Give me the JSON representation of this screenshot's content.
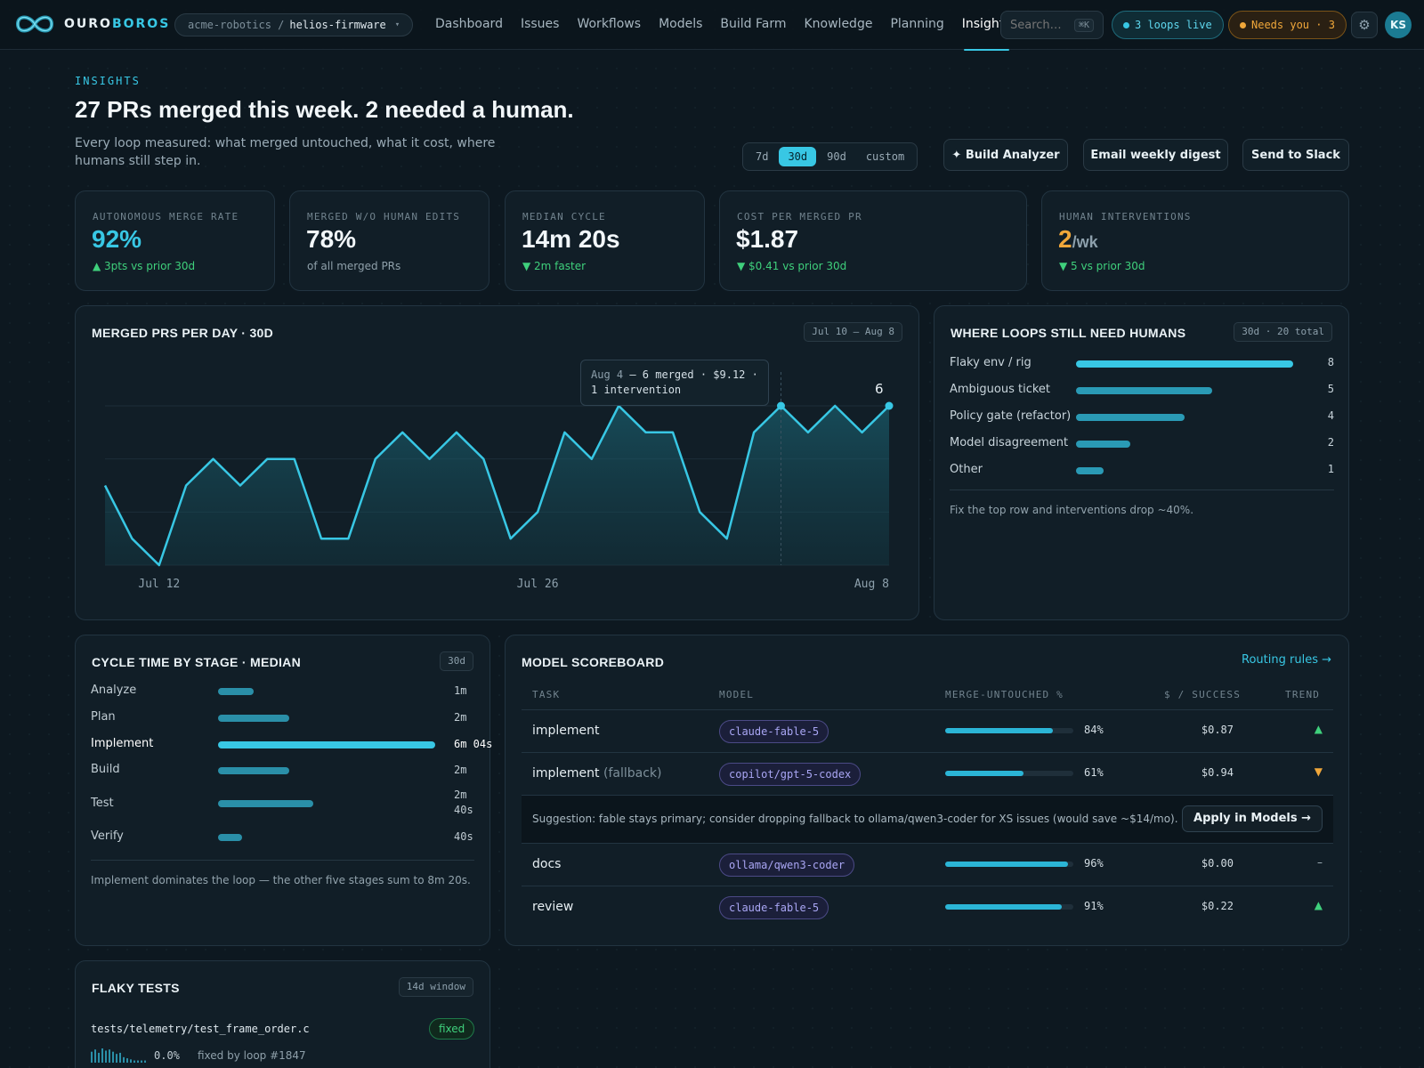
{
  "brand": {
    "name_a": "OURO",
    "name_b": "BOROS"
  },
  "repo": {
    "org": "acme-robotics /",
    "name": "helios-firmware"
  },
  "nav": [
    {
      "label": "Dashboard",
      "active": false
    },
    {
      "label": "Issues",
      "active": false
    },
    {
      "label": "Workflows",
      "active": false
    },
    {
      "label": "Models",
      "active": false
    },
    {
      "label": "Build Farm",
      "active": false
    },
    {
      "label": "Knowledge",
      "active": false
    },
    {
      "label": "Planning",
      "active": false
    },
    {
      "label": "Insights",
      "active": true
    }
  ],
  "search": {
    "placeholder": "Search…",
    "shortcut": "⌘K"
  },
  "status": {
    "live": "3 loops live",
    "needs": "Needs you · 3"
  },
  "user": {
    "initials": "KS"
  },
  "header": {
    "eyebrow": "INSIGHTS",
    "title": "27 PRs merged this week. 2 needed a human.",
    "subtitle": "Every loop measured: what merged untouched, what it cost, where humans still step in.",
    "ranges": [
      "7d",
      "30d",
      "90d",
      "custom"
    ],
    "selected_range": "30d",
    "actions": {
      "analyzer": "✦ Build Analyzer",
      "digest": "Email weekly digest",
      "slack": "Send to Slack"
    }
  },
  "kpis": [
    {
      "label": "AUTONOMOUS MERGE RATE",
      "value": "92%",
      "unit": "",
      "sub": "▲ 3pts vs prior 30d",
      "tone": "good",
      "color": "#38c7e4"
    },
    {
      "label": "MERGED W/O HUMAN EDITS",
      "value": "78%",
      "unit": "",
      "sub": "of all merged PRs",
      "tone": "neutral",
      "color": "#f2f7fa"
    },
    {
      "label": "MEDIAN CYCLE",
      "value": "14m 20s",
      "unit": "",
      "sub": "▼ 2m faster",
      "tone": "good",
      "color": "#f2f7fa"
    },
    {
      "label": "COST PER MERGED PR",
      "value": "$1.87",
      "unit": "",
      "sub": "▼ $0.41 vs prior 30d",
      "tone": "good",
      "color": "#f2f7fa"
    },
    {
      "label": "HUMAN INTERVENTIONS",
      "value": "2",
      "unit": "/wk",
      "sub": "▼ 5 vs prior 30d",
      "tone": "good",
      "color": "#f0a73a"
    }
  ],
  "merged_chart": {
    "title": "MERGED PRS PER DAY · 30D",
    "range_tag": "Jul 10 – Aug 8",
    "x_ticks": [
      "Jul 12",
      "Jul 26",
      "Aug 8"
    ],
    "tooltip": {
      "date": "Aug 4",
      "body_1": " — 6 merged · $9.12 ·",
      "body_2": "1 intervention"
    },
    "last_value_label": "6",
    "chart_data": {
      "type": "area",
      "x": [
        "Jul 10",
        "Jul 11",
        "Jul 12",
        "Jul 13",
        "Jul 14",
        "Jul 15",
        "Jul 16",
        "Jul 17",
        "Jul 18",
        "Jul 19",
        "Jul 20",
        "Jul 21",
        "Jul 22",
        "Jul 23",
        "Jul 24",
        "Jul 25",
        "Jul 26",
        "Jul 27",
        "Jul 28",
        "Jul 29",
        "Jul 30",
        "Jul 31",
        "Aug 1",
        "Aug 2",
        "Aug 3",
        "Aug 4",
        "Aug 5",
        "Aug 6",
        "Aug 7",
        "Aug 8"
      ],
      "values": [
        3,
        1,
        0,
        3,
        4,
        3,
        4,
        4,
        1,
        1,
        4,
        5,
        4,
        5,
        4,
        1,
        2,
        5,
        4,
        6,
        5,
        5,
        2,
        1,
        5,
        6,
        5,
        6,
        5,
        6
      ],
      "ylim": [
        0,
        6
      ],
      "grid": true,
      "highlight_x": "Aug 4",
      "color": "#38c7e4"
    }
  },
  "humans": {
    "title": "WHERE LOOPS STILL NEED HUMANS",
    "tag": "30d · 20 total",
    "note": "Fix the top row and interventions drop ~40%.",
    "chart_data": {
      "type": "bar",
      "categories": [
        "Flaky env / rig",
        "Ambiguous ticket",
        "Policy gate (refactor)",
        "Model disagreement",
        "Other"
      ],
      "values": [
        8,
        5,
        4,
        2,
        1
      ],
      "colors": [
        "#38c7e4",
        "#2a9ab5",
        "#2a9ab5",
        "#2a9ab5",
        "#2a9ab5"
      ]
    }
  },
  "cycle": {
    "title": "CYCLE TIME BY STAGE · MEDIAN",
    "tag": "30d",
    "note": "Implement dominates the loop — the other five stages sum to 8m 20s.",
    "stages": [
      {
        "label": "Analyze",
        "value_label": "1m",
        "seconds": 60,
        "highlight": false
      },
      {
        "label": "Plan",
        "value_label": "2m",
        "seconds": 120,
        "highlight": false
      },
      {
        "label": "Implement",
        "value_label": "6m 04s",
        "seconds": 364,
        "highlight": true
      },
      {
        "label": "Build",
        "value_label": "2m",
        "seconds": 120,
        "highlight": false
      },
      {
        "label": "Test",
        "value_label": "2m 40s",
        "seconds": 160,
        "highlight": false
      },
      {
        "label": "Verify",
        "value_label": "40s",
        "seconds": 40,
        "highlight": false
      }
    ]
  },
  "scoreboard": {
    "title": "MODEL SCOREBOARD",
    "link": "Routing rules →",
    "columns": [
      "TASK",
      "MODEL",
      "MERGE-UNTOUCHED %",
      "$ / SUCCESS",
      "TREND"
    ],
    "rows": [
      {
        "task": "implement",
        "fallback": "",
        "model": "claude-fable-5",
        "pct": 84,
        "pct_label": "84%",
        "cost": "$0.87",
        "trend": "▲",
        "trend_color": "#3fd07c"
      },
      {
        "task": "implement",
        "fallback": "(fallback)",
        "model": "copilot/gpt-5-codex",
        "pct": 61,
        "pct_label": "61%",
        "cost": "$0.94",
        "trend": "▼",
        "trend_color": "#f0a73a"
      },
      {
        "task": "docs",
        "fallback": "",
        "model": "ollama/qwen3-coder",
        "pct": 96,
        "pct_label": "96%",
        "cost": "$0.00",
        "trend": "–",
        "trend_color": "#a9b8c1"
      },
      {
        "task": "review",
        "fallback": "",
        "model": "claude-fable-5",
        "pct": 91,
        "pct_label": "91%",
        "cost": "$0.22",
        "trend": "▲",
        "trend_color": "#3fd07c"
      }
    ],
    "suggestion": "Suggestion: fable stays primary; consider dropping fallback to ollama/qwen3-coder for XS issues (would save ~$14/mo).",
    "apply": "Apply in Models →"
  },
  "flaky": {
    "title": "FLAKY TESTS",
    "tag": "14d window",
    "test_name": "tests/telemetry/test_frame_order.c",
    "status": "fixed",
    "rate": "0.0%",
    "detail": "fixed by loop #1847",
    "sparkline": [
      10,
      12,
      9,
      13,
      11,
      12,
      10,
      8,
      9,
      5,
      4,
      3,
      2,
      2,
      2,
      2
    ]
  }
}
